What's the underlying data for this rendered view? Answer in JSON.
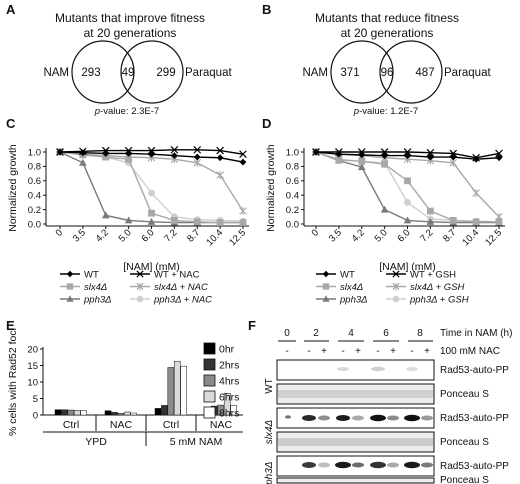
{
  "figure": {
    "A": {
      "label": "A",
      "title_line1": "Mutants that improve fitness",
      "title_line2": "at 20 generations",
      "left_name": "NAM",
      "right_name": "Paraquat",
      "left_only": "293",
      "overlap": "49",
      "right_only": "299",
      "pvalue_label": "p",
      "pvalue_text": "-value: 2.3E-7"
    },
    "B": {
      "label": "B",
      "title_line1": "Mutants that reduce fitness",
      "title_line2": "at 20 generations",
      "left_name": "NAM",
      "right_name": "Paraquat",
      "left_only": "371",
      "overlap": "96",
      "right_only": "487",
      "pvalue_label": "p",
      "pvalue_text": "-value: 1.2E-7"
    },
    "E_label": "E",
    "F": {
      "label": "F",
      "time_values": [
        "0",
        "2",
        "4",
        "6",
        "8"
      ],
      "time_label": "Time in NAM (h)",
      "sign_minus": "-",
      "sign_plus": "+",
      "nac_label": "100 mM NAC",
      "rows": [
        {
          "strain": "WT",
          "blot1": "Rad53-auto-PP",
          "blot2": "Ponceau S"
        },
        {
          "strain": "slx4Δ",
          "blot1": "Rad53-auto-PP",
          "blot2": "Ponceau S"
        },
        {
          "strain": "pph3Δ",
          "blot1": "Rad53-auto-PP",
          "blot2": "Ponceau S"
        }
      ]
    }
  },
  "chart_data": [
    {
      "panel": "C",
      "type": "line",
      "xlabel": "[NAM] (mM)",
      "ylabel": "Normalized growth",
      "categories": [
        "0",
        "3.5",
        "4.2",
        "5.0",
        "6.0",
        "7.2",
        "8.7",
        "10.4",
        "12.5"
      ],
      "ylim": [
        0.0,
        1.0
      ],
      "yticks": [
        "0.0",
        "0.2",
        "0.4",
        "0.6",
        "0.8",
        "1.0"
      ],
      "series": [
        {
          "name": "WT",
          "marker": "diamond",
          "color": "#000000",
          "values": [
            1.0,
            0.99,
            0.98,
            0.98,
            0.97,
            0.95,
            0.93,
            0.92,
            0.86
          ]
        },
        {
          "name": "WT + NAC",
          "marker": "x",
          "color": "#000000",
          "values": [
            1.0,
            1.01,
            1.02,
            1.02,
            1.02,
            1.03,
            1.03,
            1.02,
            0.97
          ]
        },
        {
          "name": "slx4Δ",
          "marker": "square",
          "color": "#a8a8a8",
          "values": [
            1.0,
            0.96,
            0.93,
            0.9,
            0.15,
            0.05,
            0.03,
            0.02,
            0.02
          ]
        },
        {
          "name": "slx4Δ + NAC",
          "marker": "asterisk",
          "color": "#a8a8a8",
          "values": [
            1.0,
            0.97,
            0.95,
            0.93,
            0.92,
            0.9,
            0.85,
            0.68,
            0.18
          ]
        },
        {
          "name": "pph3Δ",
          "marker": "triangle",
          "color": "#7a7a7a",
          "values": [
            1.0,
            0.85,
            0.12,
            0.05,
            0.03,
            0.02,
            0.02,
            0.02,
            0.02
          ]
        },
        {
          "name": "pph3Δ + NAC",
          "marker": "circle",
          "color": "#cfcfcf",
          "values": [
            1.0,
            0.97,
            0.93,
            0.85,
            0.43,
            0.1,
            0.06,
            0.05,
            0.04
          ]
        }
      ]
    },
    {
      "panel": "D",
      "type": "line",
      "xlabel": "[NAM] (mM)",
      "ylabel": "Normalized growth",
      "categories": [
        "0",
        "3.5",
        "4.2",
        "5.0",
        "6.0",
        "7.2",
        "8.7",
        "10.4",
        "12.5"
      ],
      "ylim": [
        0.0,
        1.0
      ],
      "yticks": [
        "0.0",
        "0.2",
        "0.4",
        "0.6",
        "0.8",
        "1.0"
      ],
      "series": [
        {
          "name": "WT",
          "marker": "diamond",
          "color": "#000000",
          "values": [
            1.0,
            0.97,
            0.96,
            0.95,
            0.95,
            0.93,
            0.93,
            0.9,
            0.92
          ]
        },
        {
          "name": "WT + GSH",
          "marker": "x",
          "color": "#000000",
          "values": [
            1.0,
            1.0,
            1.0,
            1.0,
            1.0,
            0.99,
            0.98,
            0.92,
            0.98
          ]
        },
        {
          "name": "slx4Δ",
          "marker": "square",
          "color": "#a8a8a8",
          "values": [
            1.0,
            0.89,
            0.87,
            0.83,
            0.6,
            0.18,
            0.05,
            0.03,
            0.03
          ]
        },
        {
          "name": "slx4Δ + GSH",
          "marker": "asterisk",
          "color": "#a8a8a8",
          "values": [
            1.0,
            0.97,
            0.95,
            0.92,
            0.9,
            0.88,
            0.85,
            0.43,
            0.1
          ]
        },
        {
          "name": "pph3Δ",
          "marker": "triangle",
          "color": "#7a7a7a",
          "values": [
            1.0,
            0.88,
            0.79,
            0.2,
            0.05,
            0.03,
            0.02,
            0.02,
            0.02
          ]
        },
        {
          "name": "pph3Δ + GSH",
          "marker": "circle",
          "color": "#cfcfcf",
          "values": [
            1.0,
            0.9,
            0.87,
            0.85,
            0.3,
            0.07,
            0.05,
            0.04,
            0.03
          ]
        }
      ]
    },
    {
      "panel": "E",
      "type": "bar",
      "ylabel": "% cells with Rad52 foci",
      "ylim": [
        0,
        20
      ],
      "yticks": [
        "0",
        "5",
        "10",
        "15",
        "20"
      ],
      "categories": [
        "Ctrl",
        "NAC",
        "Ctrl",
        "NAC"
      ],
      "groups": [
        {
          "label": "YPD",
          "span": [
            0,
            1
          ]
        },
        {
          "label": "5 mM NAM",
          "span": [
            2,
            3
          ]
        }
      ],
      "series": [
        {
          "name": "0hr",
          "color": "#000000",
          "values": [
            1.6,
            1.3,
            2.0,
            2.2
          ]
        },
        {
          "name": "2hrs",
          "color": "#333333",
          "values": [
            1.6,
            0.8,
            2.9,
            2.7
          ]
        },
        {
          "name": "4hrs",
          "color": "#8a8a8a",
          "values": [
            1.5,
            0.5,
            14.4,
            3.0
          ]
        },
        {
          "name": "6hrs",
          "color": "#dadada",
          "values": [
            1.4,
            0.9,
            16.3,
            6.6
          ]
        },
        {
          "name": "8hrs",
          "color": "#ffffff",
          "values": [
            1.3,
            0.6,
            14.8,
            2.9
          ]
        }
      ]
    }
  ]
}
